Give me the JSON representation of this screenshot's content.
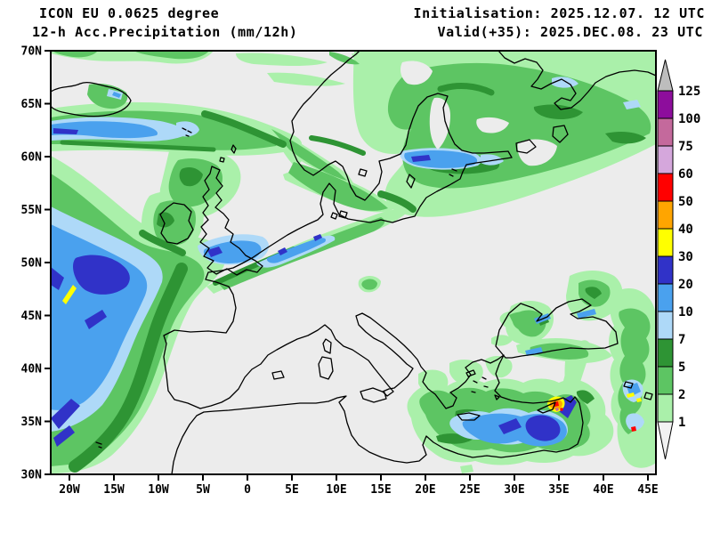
{
  "header": {
    "model_line": "ICON EU 0.0625 degree",
    "product_line": "12-h Acc.Precipitation (mm/12h)",
    "init_line": "Initialisation: 2025.12.07. 12 UTC",
    "valid_line": "Valid(+35): 2025.DEC.08. 23 UTC"
  },
  "map": {
    "lat_ticks": [
      "70N",
      "65N",
      "60N",
      "55N",
      "50N",
      "45N",
      "40N",
      "35N",
      "30N"
    ],
    "lon_ticks": [
      "20W",
      "15W",
      "10W",
      "5W",
      "0",
      "5E",
      "10E",
      "15E",
      "20E",
      "25E",
      "30E",
      "35E",
      "40E",
      "45E"
    ]
  },
  "legend": {
    "labels": [
      "125",
      "100",
      "75",
      "60",
      "50",
      "40",
      "30",
      "20",
      "10",
      "7",
      "5",
      "2",
      "1"
    ],
    "order": [
      "c100",
      "c75",
      "c60",
      "c50",
      "c40",
      "c30",
      "c20",
      "c10",
      "c7",
      "c5",
      "c2",
      "c1"
    ]
  },
  "palette": {
    "bg": "#ececec",
    "c1": "#aaf0aa",
    "c2": "#5dc563",
    "c5": "#2e9434",
    "c7": "#aed9f8",
    "c10": "#4aa1ee",
    "c20": "#3032c8",
    "c30": "#ffff00",
    "c40": "#ffa500",
    "c50": "#ff0000",
    "c60": "#d5a7dc",
    "c75": "#c4699c",
    "c100": "#8d0d9c",
    "overflow": "#bdbdbd",
    "underflow": "#f2f2f2"
  }
}
